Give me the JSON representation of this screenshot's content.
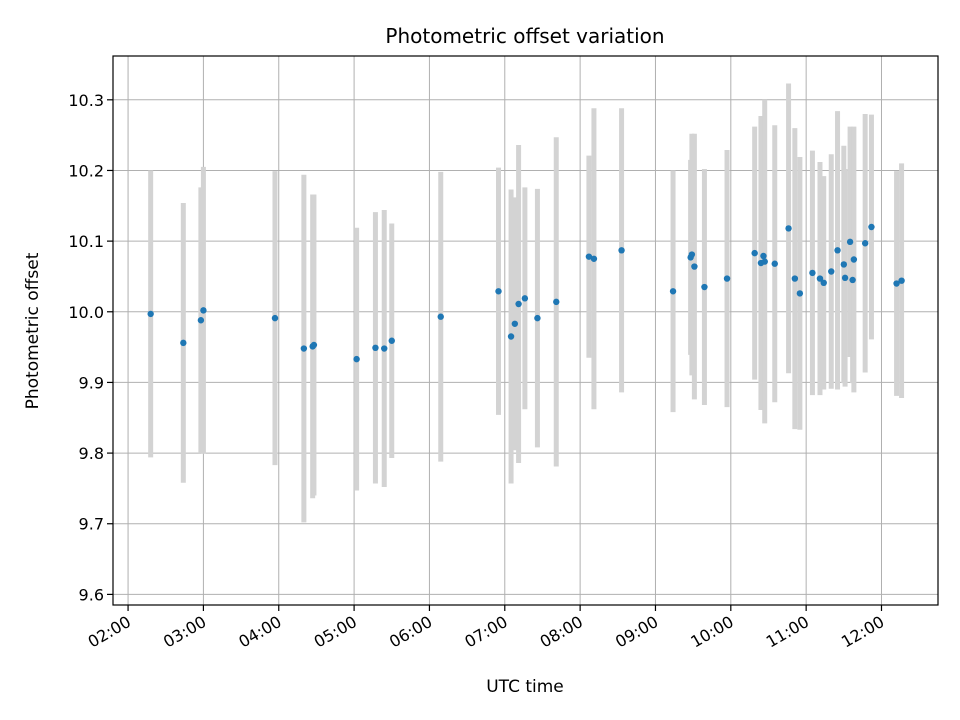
{
  "chart_data": {
    "type": "scatter",
    "title": "Photometric offset variation",
    "xlabel": "UTC time",
    "ylabel": "Photometric offset",
    "x_axis": "time-of-day",
    "xlim": [
      "01:48",
      "12:45"
    ],
    "ylim": [
      9.585,
      10.362
    ],
    "grid": true,
    "x_ticks": [
      "02:00",
      "03:00",
      "04:00",
      "05:00",
      "06:00",
      "07:00",
      "08:00",
      "09:00",
      "10:00",
      "11:00",
      "12:00"
    ],
    "y_ticks": [
      "9.6",
      "9.7",
      "9.8",
      "9.9",
      "10.0",
      "10.1",
      "10.2",
      "10.3"
    ],
    "colors": {
      "point": "#1f77b4",
      "error_bar": "#d3d3d3"
    },
    "series": [
      {
        "x": [
          "02:18",
          "02:44",
          "02:58",
          "03:00",
          "03:57",
          "04:20",
          "04:27",
          "04:28",
          "05:02",
          "05:17",
          "05:24",
          "05:30",
          "06:09",
          "06:55",
          "07:05",
          "07:08",
          "07:11",
          "07:16",
          "07:26",
          "07:41",
          "08:07",
          "08:11",
          "08:33",
          "09:14",
          "09:28",
          "09:29",
          "09:31",
          "09:39",
          "09:57",
          "10:19",
          "10:24",
          "10:26",
          "10:27",
          "10:35",
          "10:46",
          "10:51",
          "10:55",
          "11:05",
          "11:11",
          "11:14",
          "11:20",
          "11:25",
          "11:30",
          "11:31",
          "11:35",
          "11:37",
          "11:38",
          "11:47",
          "11:52",
          "12:12",
          "12:16"
        ],
        "y": [
          9.997,
          9.956,
          9.988,
          10.002,
          9.991,
          9.948,
          9.951,
          9.953,
          9.933,
          9.949,
          9.948,
          9.959,
          9.993,
          10.029,
          9.965,
          9.983,
          10.011,
          10.019,
          9.991,
          10.014,
          10.078,
          10.075,
          10.087,
          10.029,
          10.077,
          10.081,
          10.064,
          10.035,
          10.047,
          10.083,
          10.069,
          10.079,
          10.071,
          10.068,
          10.118,
          10.047,
          10.026,
          10.055,
          10.047,
          10.041,
          10.057,
          10.087,
          10.067,
          10.048,
          10.099,
          10.045,
          10.074,
          10.097,
          10.12,
          10.04,
          10.044
        ],
        "err": [
          0.203,
          0.198,
          0.188,
          0.203,
          0.208,
          0.246,
          0.215,
          0.213,
          0.186,
          0.192,
          0.196,
          0.166,
          0.205,
          0.175,
          0.208,
          0.179,
          0.225,
          0.157,
          0.183,
          0.233,
          0.143,
          0.213,
          0.201,
          0.171,
          0.138,
          0.171,
          0.188,
          0.167,
          0.182,
          0.179,
          0.208,
          0.197,
          0.229,
          0.196,
          0.205,
          0.213,
          0.193,
          0.173,
          0.165,
          0.151,
          0.166,
          0.197,
          0.168,
          0.154,
          0.163,
          0.146,
          0.188,
          0.183,
          0.159,
          0.159,
          0.166
        ]
      }
    ]
  }
}
